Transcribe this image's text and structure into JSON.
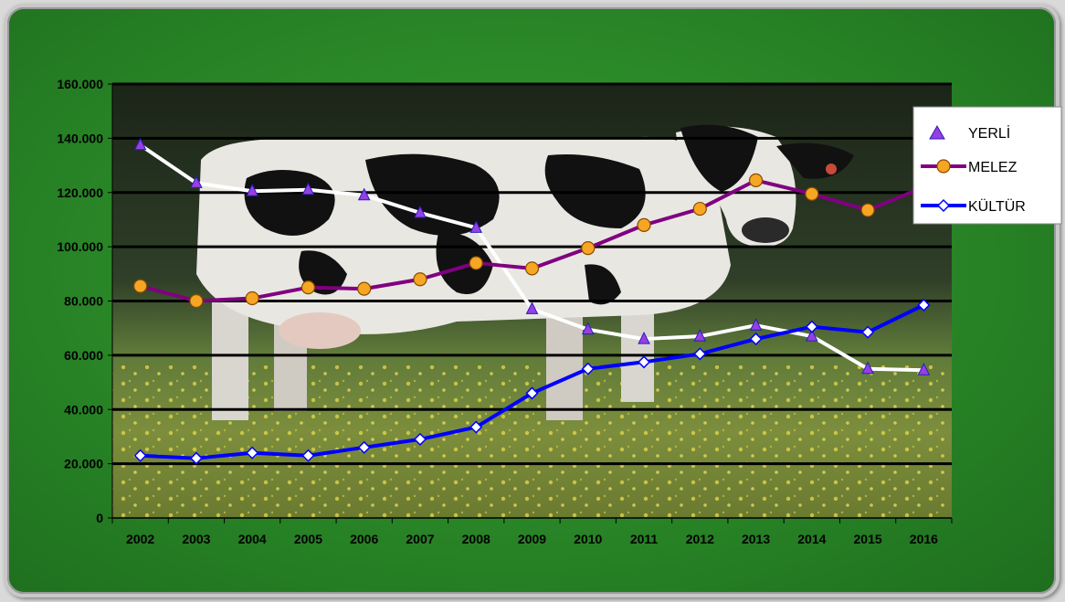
{
  "chart_data": {
    "type": "line",
    "title": "",
    "xlabel": "",
    "ylabel": "",
    "categories": [
      "2002",
      "2003",
      "2004",
      "2005",
      "2006",
      "2007",
      "2008",
      "2009",
      "2010",
      "2011",
      "2012",
      "2013",
      "2014",
      "2015",
      "2016"
    ],
    "ylim": [
      0,
      160000
    ],
    "y_ticks": [
      0,
      20000,
      40000,
      60000,
      80000,
      100000,
      120000,
      140000,
      160000
    ],
    "y_tick_labels": [
      "0",
      "20.000",
      "40.000",
      "60.000",
      "80.000",
      "100.000",
      "120.000",
      "140.000",
      "160.000"
    ],
    "grid": true,
    "legend": "right",
    "background": "photo of a black and white cow standing in a meadow with yellow flowers",
    "series": [
      {
        "name": "YERLİ",
        "color": "#ffffff",
        "marker": "triangle",
        "marker_color": "#9a3ee0",
        "marker_edge": "#2020c0",
        "values": [
          137500,
          123500,
          120500,
          121000,
          119000,
          112500,
          107000,
          77000,
          69500,
          66000,
          67000,
          71000,
          67000,
          55000,
          54500
        ]
      },
      {
        "name": "MELEZ",
        "color": "#800080",
        "marker": "circle",
        "marker_color": "#f5a623",
        "marker_edge": "#8a4a00",
        "values": [
          85500,
          80000,
          81000,
          85000,
          84500,
          88000,
          94000,
          92000,
          99500,
          108000,
          114000,
          124500,
          119500,
          113500,
          122000
        ]
      },
      {
        "name": "KÜLTÜR",
        "color": "#0000ff",
        "marker": "diamond",
        "marker_color": "#ffffff",
        "marker_edge": "#0000ff",
        "values": [
          23000,
          22000,
          24000,
          23000,
          26000,
          29000,
          33500,
          46000,
          55000,
          57500,
          60500,
          66000,
          70500,
          68500,
          78500
        ]
      }
    ]
  }
}
